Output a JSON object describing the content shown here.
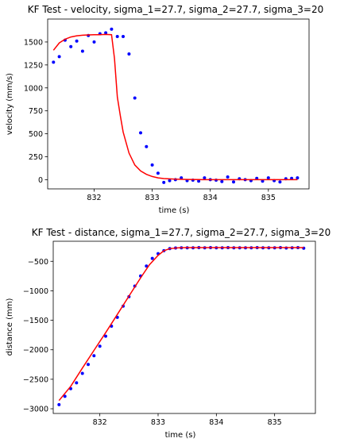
{
  "chart_data": [
    {
      "type": "scatter",
      "title": "KF Test - velocity, sigma_1=27.7, sigma_2=27.7, sigma_3=20",
      "xlabel": "time (s)",
      "ylabel": "velocity (mm/s)",
      "xlim": [
        831.2,
        835.7
      ],
      "ylim": [
        -100,
        1750
      ],
      "xticks": [
        832,
        833,
        834,
        835
      ],
      "xtick_labels": [
        "832",
        "833",
        "834",
        "835"
      ],
      "yticks": [
        0,
        250,
        500,
        750,
        1000,
        1250,
        1500
      ],
      "ytick_labels": [
        "0",
        "250",
        "500",
        "750",
        "1000",
        "1250",
        "1500"
      ],
      "grid": false,
      "series": [
        {
          "kind": "points",
          "color": "#0000ff",
          "x": [
            831.3,
            831.4,
            831.5,
            831.6,
            831.7,
            831.8,
            831.9,
            832.0,
            832.1,
            832.2,
            832.3,
            832.4,
            832.5,
            832.6,
            832.7,
            832.8,
            832.9,
            833.0,
            833.1,
            833.2,
            833.3,
            833.4,
            833.5,
            833.6,
            833.7,
            833.8,
            833.9,
            834.0,
            834.1,
            834.2,
            834.3,
            834.4,
            834.5,
            834.6,
            834.7,
            834.8,
            834.9,
            835.0,
            835.1,
            835.2,
            835.3,
            835.4,
            835.5
          ],
          "y": [
            1280,
            1340,
            1520,
            1450,
            1510,
            1400,
            1570,
            1500,
            1590,
            1600,
            1640,
            1560,
            1560,
            1370,
            890,
            510,
            360,
            160,
            70,
            -30,
            -10,
            0,
            20,
            -10,
            -5,
            -15,
            20,
            0,
            -5,
            -20,
            30,
            -25,
            10,
            0,
            -10,
            15,
            -15,
            20,
            -10,
            -25,
            10,
            15,
            20
          ]
        },
        {
          "kind": "line",
          "color": "#ff0000",
          "x": [
            831.3,
            831.4,
            831.5,
            831.6,
            831.7,
            831.8,
            831.9,
            832.0,
            832.1,
            832.2,
            832.3,
            832.35,
            832.4,
            832.45,
            832.5,
            832.6,
            832.7,
            832.8,
            832.9,
            833.0,
            833.1,
            833.2,
            833.4,
            833.6,
            833.8,
            834.0,
            834.5,
            835.0,
            835.5
          ],
          "y": [
            1410,
            1490,
            1530,
            1555,
            1568,
            1574,
            1577,
            1579,
            1580,
            1582,
            1580,
            1320,
            900,
            700,
            520,
            290,
            160,
            95,
            58,
            35,
            20,
            12,
            6,
            3,
            1,
            0,
            0,
            0,
            0
          ]
        }
      ]
    },
    {
      "type": "scatter",
      "title": "KF Test - distance, sigma_1=27.7, sigma_2=27.7, sigma_3=20",
      "xlabel": "time (s)",
      "ylabel": "distance (mm)",
      "xlim": [
        831.2,
        835.7
      ],
      "ylim": [
        -3080,
        -160
      ],
      "xticks": [
        832,
        833,
        834,
        835
      ],
      "xtick_labels": [
        "832",
        "833",
        "834",
        "835"
      ],
      "yticks": [
        -3000,
        -2500,
        -2000,
        -1500,
        -1000,
        -500
      ],
      "ytick_labels": [
        "−3000",
        "−2500",
        "−2000",
        "−1500",
        "−1000",
        "−500"
      ],
      "grid": false,
      "series": [
        {
          "kind": "points",
          "color": "#0000ff",
          "x": [
            831.3,
            831.4,
            831.5,
            831.6,
            831.7,
            831.8,
            831.9,
            832.0,
            832.1,
            832.2,
            832.3,
            832.4,
            832.5,
            832.6,
            832.7,
            832.8,
            832.9,
            833.0,
            833.1,
            833.2,
            833.3,
            833.4,
            833.5,
            833.6,
            833.7,
            833.8,
            833.9,
            834.0,
            834.1,
            834.2,
            834.3,
            834.4,
            834.5,
            834.6,
            834.7,
            834.8,
            834.9,
            835.0,
            835.1,
            835.2,
            835.3,
            835.4,
            835.5
          ],
          "y": [
            -2930,
            -2790,
            -2660,
            -2560,
            -2400,
            -2250,
            -2100,
            -1940,
            -1770,
            -1600,
            -1450,
            -1260,
            -1100,
            -920,
            -750,
            -580,
            -450,
            -370,
            -320,
            -285,
            -275,
            -270,
            -270,
            -272,
            -268,
            -270,
            -268,
            -272,
            -270,
            -268,
            -270,
            -270,
            -272,
            -270,
            -268,
            -270,
            -272,
            -270,
            -268,
            -275,
            -270,
            -268,
            -278
          ]
        },
        {
          "kind": "line",
          "color": "#ff0000",
          "x": [
            831.3,
            831.5,
            831.7,
            831.9,
            832.1,
            832.3,
            832.5,
            832.7,
            832.85,
            833.0,
            833.1,
            833.2,
            833.35,
            833.5,
            834.0,
            834.5,
            835.0,
            835.5
          ],
          "y": [
            -2860,
            -2620,
            -2310,
            -2010,
            -1710,
            -1400,
            -1090,
            -780,
            -560,
            -400,
            -320,
            -285,
            -270,
            -268,
            -268,
            -268,
            -268,
            -268
          ]
        }
      ]
    }
  ]
}
